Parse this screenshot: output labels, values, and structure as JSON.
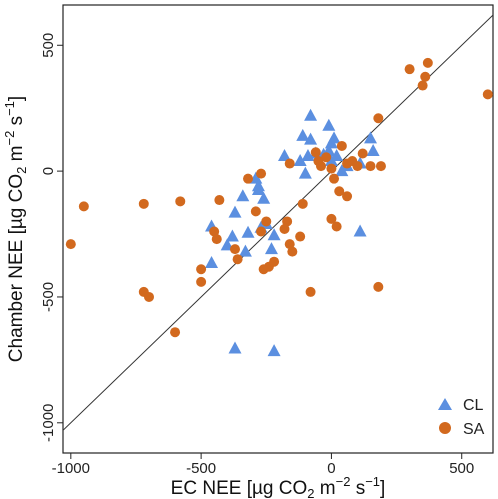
{
  "chart_data": {
    "type": "scatter",
    "xlabel": "EC NEE [µg CO₂ m⁻² s⁻¹]",
    "ylabel": "Chamber NEE [µg CO₂ m⁻² s⁻¹]",
    "xlabel_parts": {
      "pre": "EC NEE [µg CO",
      "sub": "2",
      "mid": " m",
      "sup1": "−2",
      "mid2": " s",
      "sup2": "−1",
      "post": "]"
    },
    "ylabel_parts": {
      "pre": "Chamber NEE [µg CO",
      "sub": "2",
      "mid": " m",
      "sup1": "−2",
      "mid2": " s",
      "sup2": "−1",
      "post": "]"
    },
    "xlim": [
      -1030,
      620
    ],
    "ylim": [
      -1120,
      660
    ],
    "xticks": [
      -1000,
      -500,
      0,
      500
    ],
    "xtick_labels": [
      "-1000",
      "-500",
      "0",
      "500"
    ],
    "yticks": [
      -1000,
      -500,
      0,
      500
    ],
    "ytick_labels": [
      "-1000",
      "-500",
      "0",
      "500"
    ],
    "grid": false,
    "reference_line": "1:1",
    "legend_position": "bottom-right",
    "colors": {
      "CL": "#5b8fe0",
      "SA": "#d2691e",
      "line": "#333333"
    },
    "series": [
      {
        "name": "CL",
        "marker": "triangle",
        "points": [
          [
            -80,
            220
          ],
          [
            -10,
            180
          ],
          [
            -110,
            140
          ],
          [
            -80,
            125
          ],
          [
            10,
            130
          ],
          [
            0,
            110
          ],
          [
            -120,
            40
          ],
          [
            -90,
            60
          ],
          [
            -60,
            70
          ],
          [
            -30,
            65
          ],
          [
            -10,
            80
          ],
          [
            20,
            60
          ],
          [
            0,
            40
          ],
          [
            40,
            0
          ],
          [
            110,
            30
          ],
          [
            60,
            20
          ],
          [
            150,
            130
          ],
          [
            160,
            80
          ],
          [
            -180,
            60
          ],
          [
            -100,
            -10
          ],
          [
            -290,
            -30
          ],
          [
            -280,
            -60
          ],
          [
            -280,
            -75
          ],
          [
            -340,
            -100
          ],
          [
            -260,
            -110
          ],
          [
            -370,
            -165
          ],
          [
            -250,
            -210
          ],
          [
            -270,
            -225
          ],
          [
            -460,
            -220
          ],
          [
            -380,
            -260
          ],
          [
            -320,
            -245
          ],
          [
            -220,
            -255
          ],
          [
            -400,
            -295
          ],
          [
            -330,
            -320
          ],
          [
            -230,
            -310
          ],
          [
            -460,
            -365
          ],
          [
            110,
            -240
          ],
          [
            -370,
            -705
          ],
          [
            -220,
            -715
          ]
        ]
      },
      {
        "name": "SA",
        "marker": "circle",
        "points": [
          [
            -1000,
            -290
          ],
          [
            -950,
            -140
          ],
          [
            -720,
            -130
          ],
          [
            -580,
            -120
          ],
          [
            -430,
            -115
          ],
          [
            -720,
            -480
          ],
          [
            -700,
            -500
          ],
          [
            -500,
            -390
          ],
          [
            -500,
            -440
          ],
          [
            -450,
            -240
          ],
          [
            -440,
            -270
          ],
          [
            -600,
            -640
          ],
          [
            -370,
            -310
          ],
          [
            -360,
            -350
          ],
          [
            -320,
            -30
          ],
          [
            -270,
            -10
          ],
          [
            -290,
            -160
          ],
          [
            -250,
            -200
          ],
          [
            -270,
            -240
          ],
          [
            -240,
            -380
          ],
          [
            -260,
            -390
          ],
          [
            -220,
            -360
          ],
          [
            -170,
            -200
          ],
          [
            -180,
            -230
          ],
          [
            -160,
            -290
          ],
          [
            -150,
            -320
          ],
          [
            -120,
            -260
          ],
          [
            -110,
            -130
          ],
          [
            -80,
            -480
          ],
          [
            -160,
            30
          ],
          [
            -60,
            75
          ],
          [
            -50,
            40
          ],
          [
            -40,
            20
          ],
          [
            -20,
            55
          ],
          [
            0,
            10
          ],
          [
            10,
            -30
          ],
          [
            30,
            -80
          ],
          [
            60,
            -100
          ],
          [
            40,
            100
          ],
          [
            60,
            30
          ],
          [
            80,
            40
          ],
          [
            100,
            20
          ],
          [
            120,
            70
          ],
          [
            150,
            20
          ],
          [
            190,
            20
          ],
          [
            180,
            210
          ],
          [
            0,
            -190
          ],
          [
            20,
            -220
          ],
          [
            180,
            -460
          ],
          [
            300,
            405
          ],
          [
            350,
            340
          ],
          [
            360,
            375
          ],
          [
            370,
            430
          ],
          [
            600,
            305
          ]
        ]
      }
    ]
  }
}
